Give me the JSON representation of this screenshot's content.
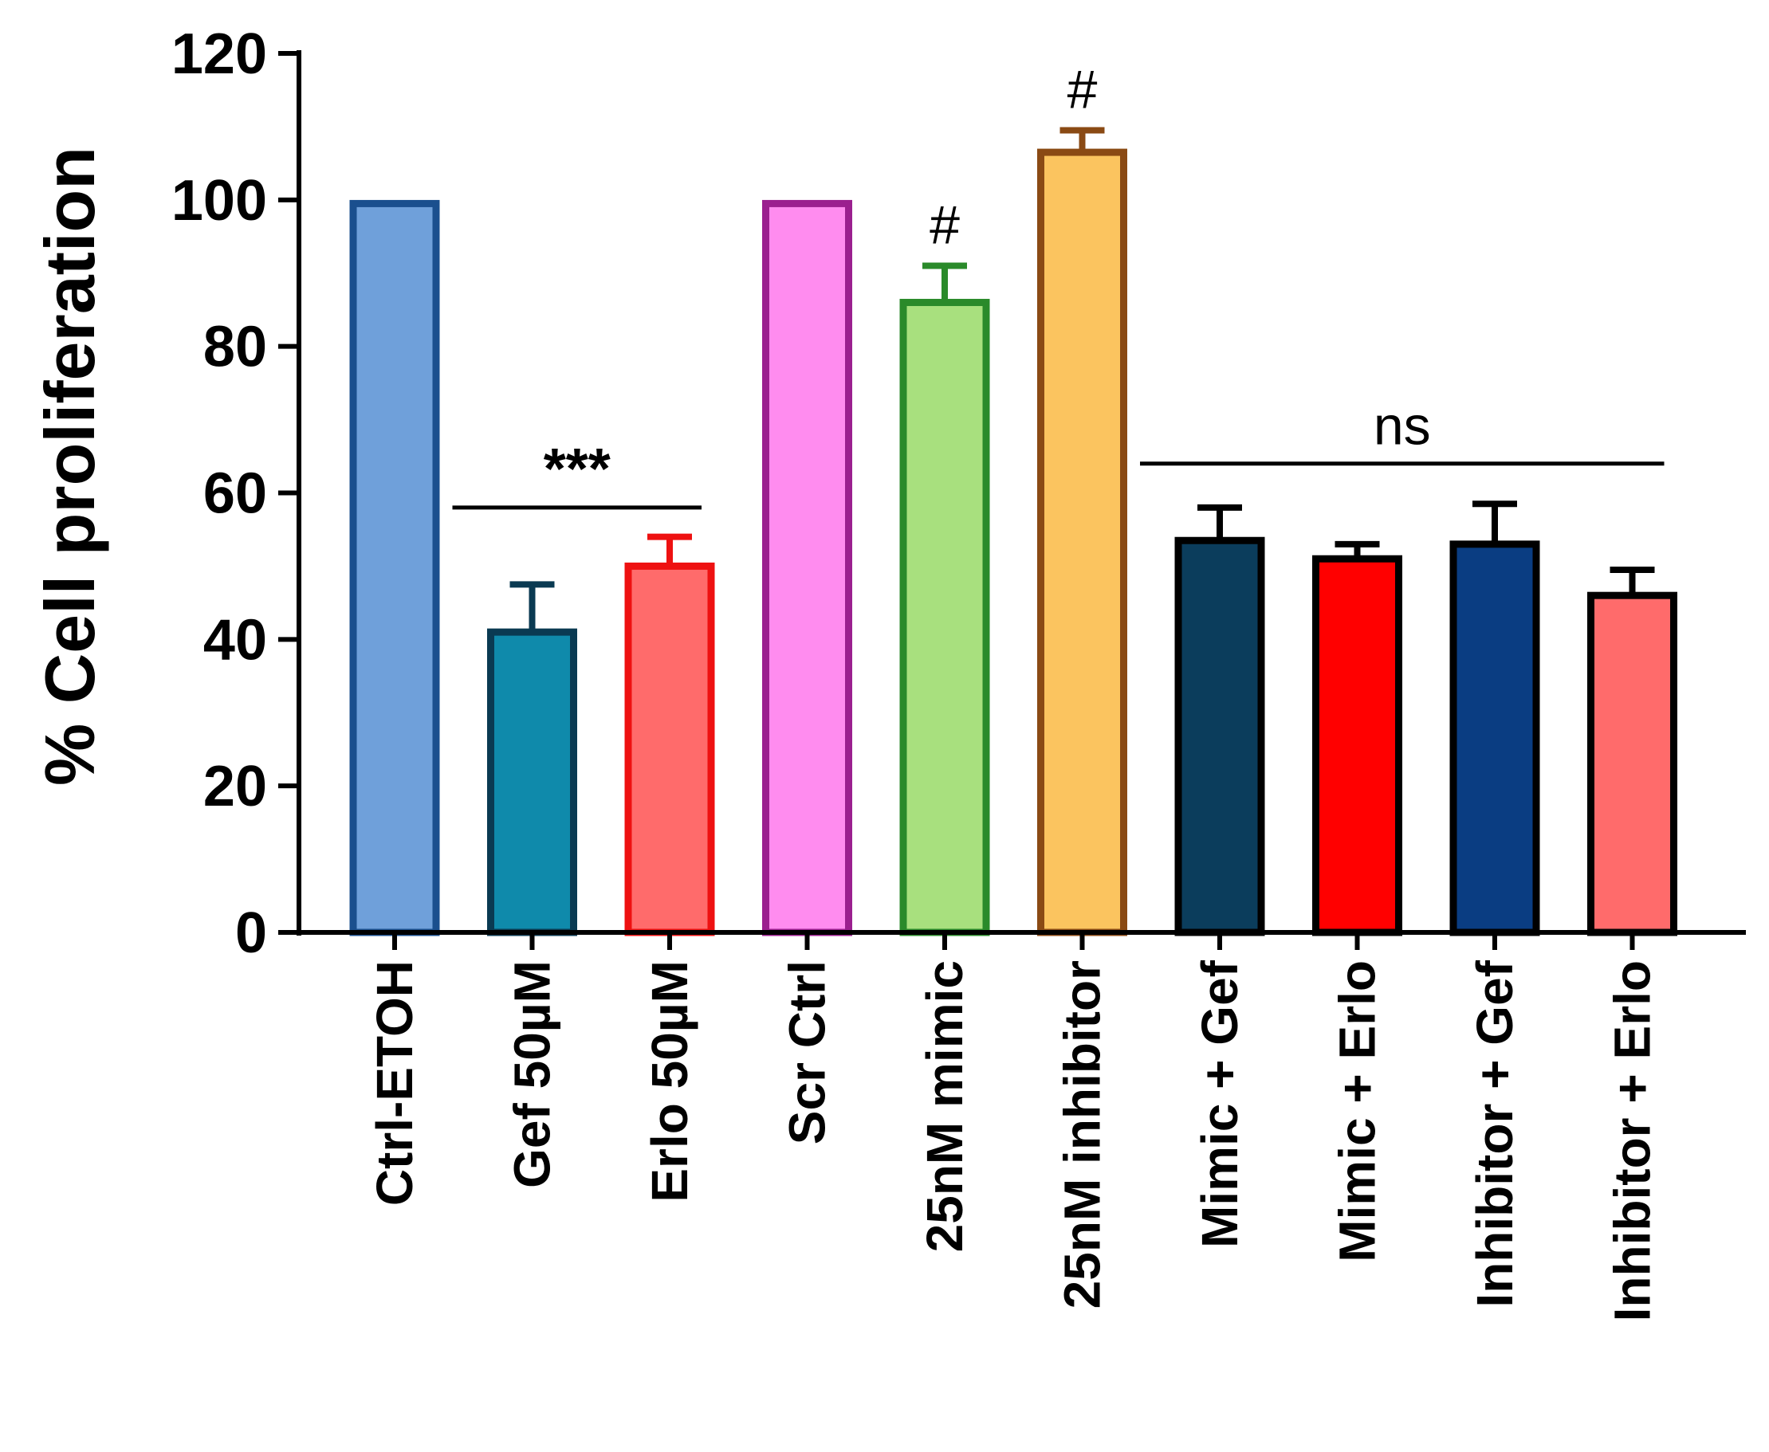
{
  "chart_data": {
    "type": "bar",
    "title": "",
    "xlabel": "",
    "ylabel": "% Cell proliferation",
    "ylim": [
      0,
      120
    ],
    "yticks": [
      0,
      20,
      40,
      60,
      80,
      100,
      120
    ],
    "grid": false,
    "categories": [
      "Ctrl-ETOH",
      "Gef 50µM",
      "Erlo 50µM",
      "Scr Ctrl",
      "25nM mimic",
      "25nM inhibitor",
      "Mimic + Gef",
      "Mimic + Erlo",
      "Inhibitor + Gef",
      "Inhibitor + Erlo"
    ],
    "values": [
      99.5,
      41,
      50,
      99.5,
      86,
      106.5,
      53.5,
      51,
      53,
      46
    ],
    "errors": [
      0,
      6.5,
      4,
      0,
      5,
      3,
      4.5,
      2,
      5.5,
      3.5
    ],
    "fill_colors": [
      "#6fa0da",
      "#0f8aab",
      "#ff6b6b",
      "#ff8cef",
      "#a8e07e",
      "#fbc45f",
      "#0b3d5c",
      "#ff0000",
      "#0a3d82",
      "#ff6b6b"
    ],
    "stroke_colors": [
      "#1a4f8e",
      "#0a3a52",
      "#ee1111",
      "#9b1f8f",
      "#2a8a2a",
      "#8a4a14",
      "#000000",
      "#000000",
      "#000000",
      "#000000"
    ],
    "annotations": [
      {
        "text": "***",
        "from": 1,
        "to": 2,
        "line_at": 58
      },
      {
        "text": "#",
        "bar": 4
      },
      {
        "text": "#",
        "bar": 5
      },
      {
        "text": "ns",
        "from": 6,
        "to": 9,
        "line_at": 64
      }
    ]
  }
}
